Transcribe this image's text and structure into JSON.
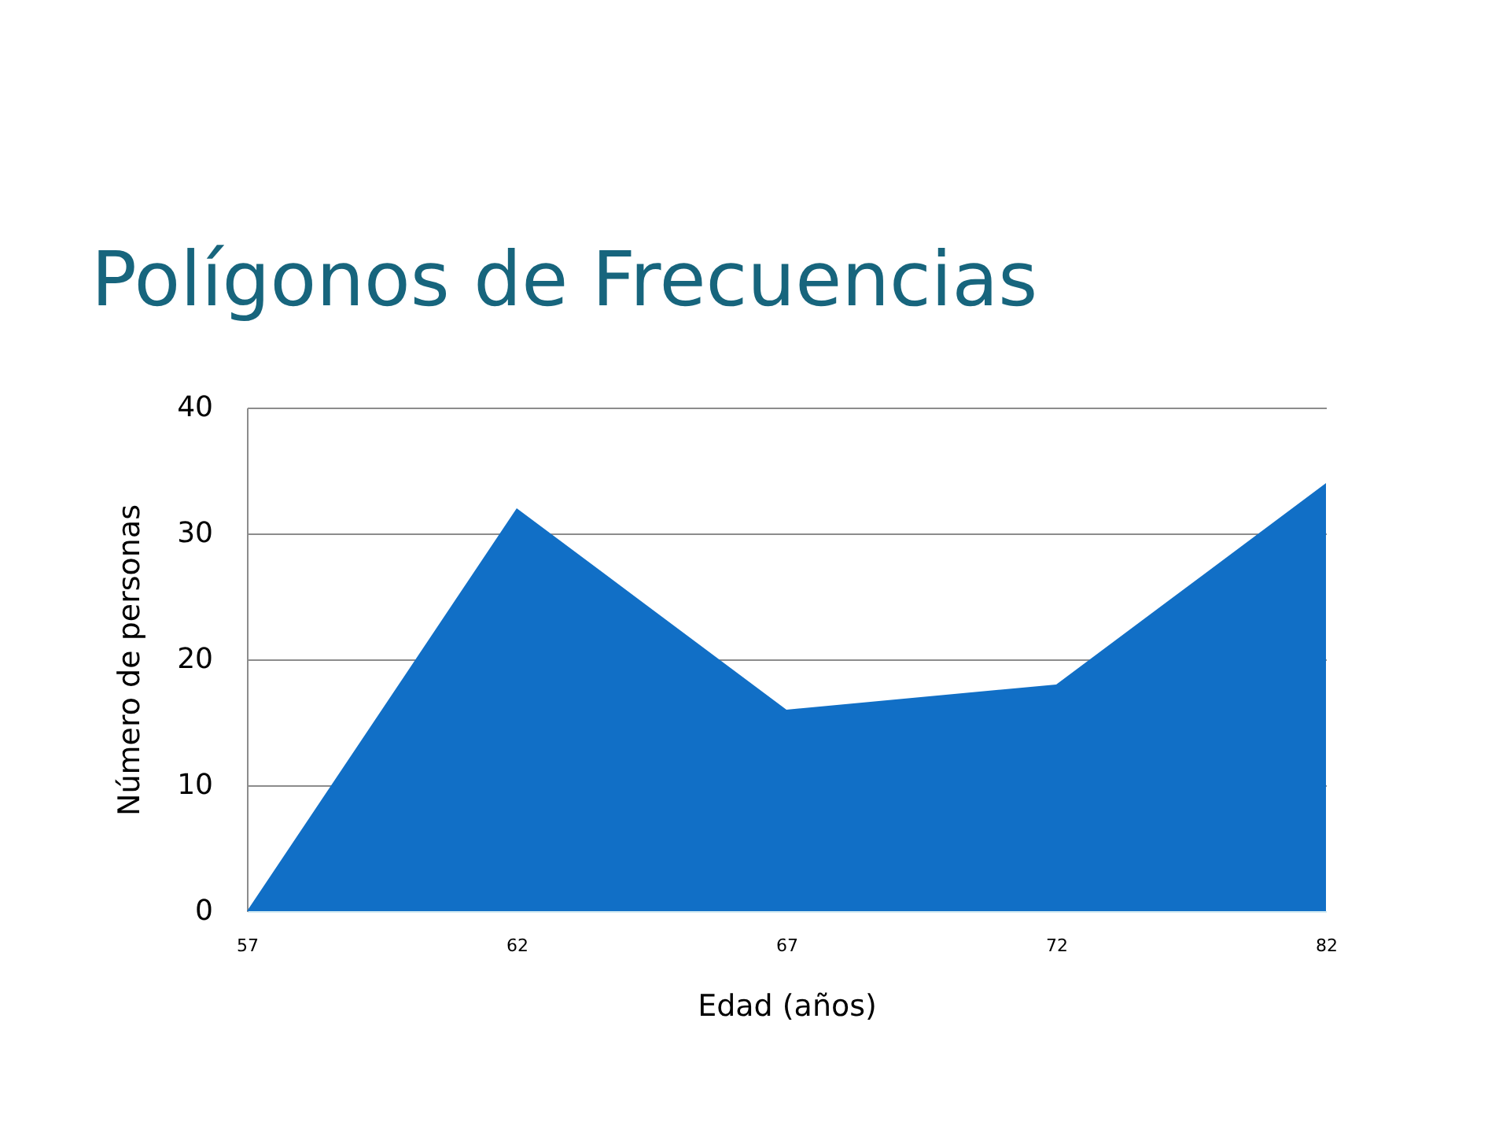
{
  "chart_data": {
    "type": "area",
    "title": "Polígonos de Frecuencias",
    "xlabel": "Edad (años)",
    "ylabel": "Número de personas",
    "categories": [
      "57",
      "62",
      "67",
      "72",
      "82"
    ],
    "series": [
      {
        "color": "#116fc6",
        "values": [
          0,
          32,
          16,
          18,
          34
        ]
      }
    ],
    "ylim": [
      0,
      40
    ],
    "yticks": [
      0,
      10,
      20,
      30,
      40
    ],
    "grid": "y"
  }
}
